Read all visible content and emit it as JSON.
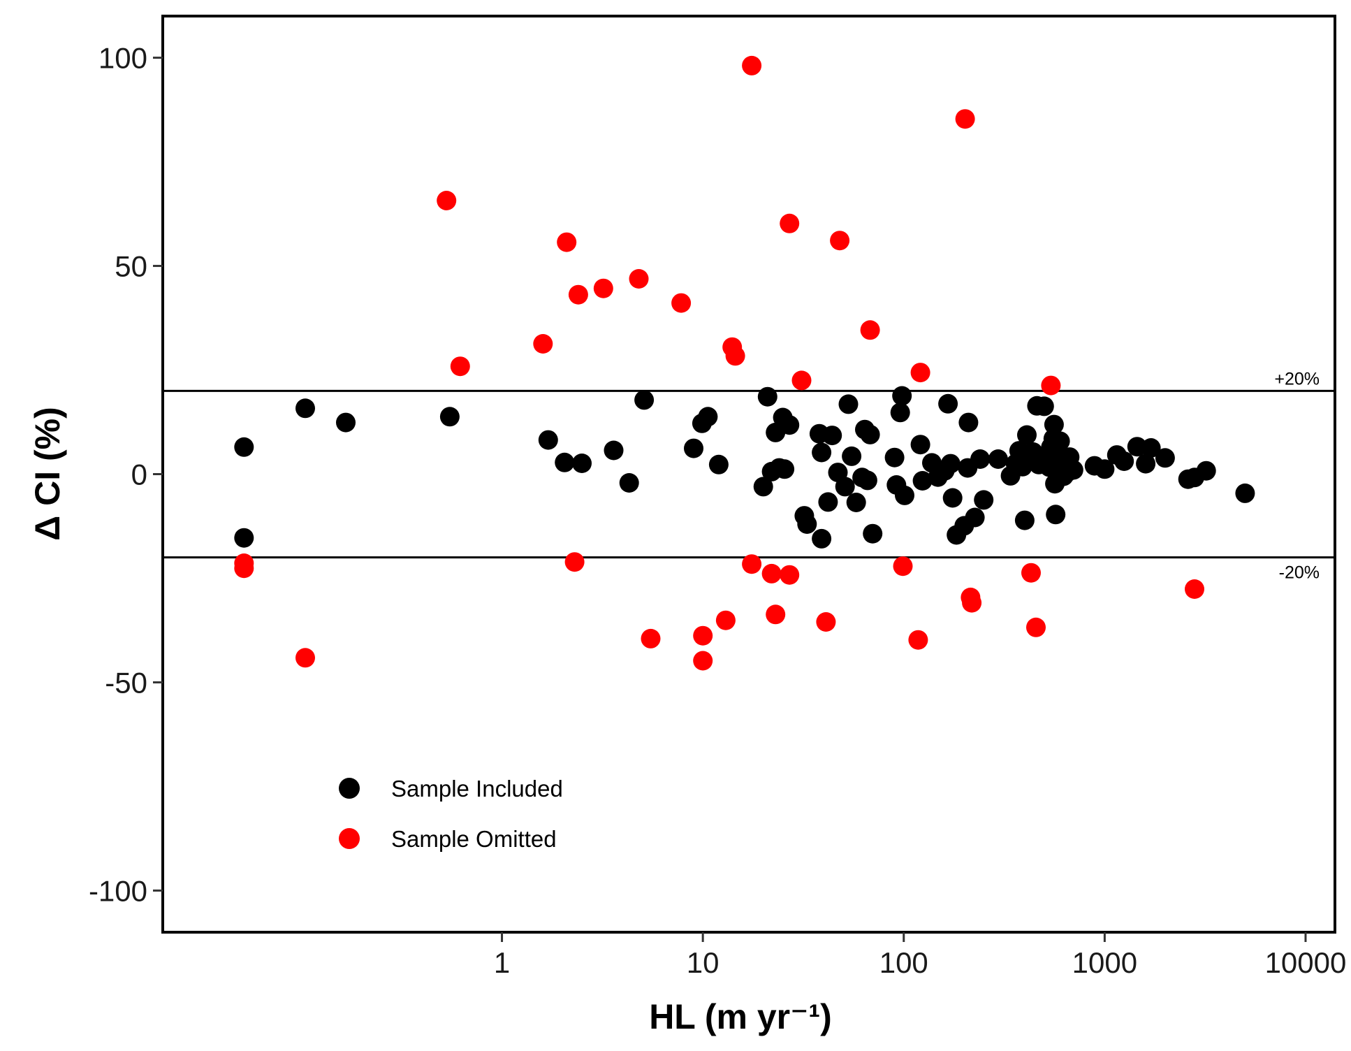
{
  "chart_data": {
    "type": "scatter",
    "x_scale": "log",
    "xlabel": "HL (m yr⁻¹)",
    "ylabel": "Δ CI (%)",
    "xlim": [
      0.0205,
      14000
    ],
    "ylim": [
      -110,
      110
    ],
    "x_ticks": [
      1,
      10,
      100,
      1000,
      10000
    ],
    "x_tick_labels": [
      "1",
      "10",
      "100",
      "1000",
      "10000"
    ],
    "y_ticks": [
      100,
      50,
      0,
      -50,
      -100
    ],
    "y_tick_labels": [
      "100",
      "50",
      "0",
      "-50",
      "-100"
    ],
    "grid": false,
    "legend_position": "bottom-left",
    "reference_lines": [
      {
        "y": 20,
        "label": "+20%"
      },
      {
        "y": -20,
        "label": "-20%"
      }
    ],
    "series": [
      {
        "name": "Sample Included",
        "color": "#000000",
        "points": [
          [
            0.052,
            6.5
          ],
          [
            0.052,
            -15.3
          ],
          [
            0.105,
            15.8
          ],
          [
            0.167,
            12.4
          ],
          [
            0.55,
            13.8
          ],
          [
            1.7,
            8.2
          ],
          [
            2.05,
            2.8
          ],
          [
            2.5,
            2.6
          ],
          [
            3.6,
            5.7
          ],
          [
            4.3,
            -2.1
          ],
          [
            5.1,
            17.8
          ],
          [
            9.0,
            6.2
          ],
          [
            9.9,
            12.2
          ],
          [
            10.6,
            13.8
          ],
          [
            12.0,
            2.3
          ],
          [
            21,
            18.6
          ],
          [
            20,
            -3.0
          ],
          [
            22,
            0.6
          ],
          [
            23,
            10
          ],
          [
            24,
            1.5
          ],
          [
            25,
            13.6
          ],
          [
            25.5,
            1.2
          ],
          [
            27,
            11.8
          ],
          [
            32,
            -10
          ],
          [
            33,
            -12
          ],
          [
            38,
            9.7
          ],
          [
            39,
            -15.5
          ],
          [
            39,
            5.2
          ],
          [
            42,
            -6.7
          ],
          [
            44,
            9.3
          ],
          [
            47,
            0.4
          ],
          [
            51,
            -3.0
          ],
          [
            53,
            16.8
          ],
          [
            55,
            4.3
          ],
          [
            58,
            -6.8
          ],
          [
            62,
            -0.8
          ],
          [
            64,
            10.7
          ],
          [
            66,
            -1.5
          ],
          [
            68,
            9.5
          ],
          [
            70,
            -14.3
          ],
          [
            90,
            4.0
          ],
          [
            92,
            -2.6
          ],
          [
            96,
            14.8
          ],
          [
            98,
            18.8
          ],
          [
            101,
            -5.1
          ],
          [
            121,
            7.1
          ],
          [
            124,
            -1.6
          ],
          [
            138,
            2.7
          ],
          [
            148,
            -0.7
          ],
          [
            160,
            0.8
          ],
          [
            166,
            16.9
          ],
          [
            171,
            2.5
          ],
          [
            175,
            -5.7
          ],
          [
            183,
            -14.6
          ],
          [
            200,
            -12.4
          ],
          [
            208,
            1.5
          ],
          [
            210,
            12.4
          ],
          [
            226,
            -10.4
          ],
          [
            240,
            3.6
          ],
          [
            250,
            -6.2
          ],
          [
            295,
            3.6
          ],
          [
            340,
            -0.4
          ],
          [
            360,
            2.5
          ],
          [
            375,
            5.6
          ],
          [
            390,
            1.8
          ],
          [
            400,
            -11.1
          ],
          [
            410,
            9.4
          ],
          [
            420,
            3.2
          ],
          [
            440,
            5.3
          ],
          [
            460,
            16.4
          ],
          [
            470,
            2.3
          ],
          [
            480,
            3.3
          ],
          [
            500,
            16.3
          ],
          [
            520,
            4.7
          ],
          [
            530,
            1.7
          ],
          [
            540,
            6.5
          ],
          [
            555,
            8.5
          ],
          [
            560,
            11.9
          ],
          [
            565,
            -2.3
          ],
          [
            570,
            -9.7
          ],
          [
            590,
            1.4
          ],
          [
            600,
            7.9
          ],
          [
            610,
            3.4
          ],
          [
            625,
            -0.5
          ],
          [
            650,
            0.4
          ],
          [
            670,
            4.1
          ],
          [
            700,
            1.0
          ],
          [
            890,
            2.0
          ],
          [
            1000,
            1.2
          ],
          [
            1150,
            4.6
          ],
          [
            1250,
            3.1
          ],
          [
            1450,
            6.6
          ],
          [
            1600,
            2.5
          ],
          [
            1700,
            6.3
          ],
          [
            2000,
            3.9
          ],
          [
            2600,
            -1.2
          ],
          [
            2800,
            -0.8
          ],
          [
            3200,
            0.8
          ],
          [
            5000,
            -4.6
          ]
        ]
      },
      {
        "name": "Sample Omitted",
        "color": "#ff0000",
        "points": [
          [
            0.052,
            -21.4
          ],
          [
            0.105,
            -44.1
          ],
          [
            0.052,
            -22.6
          ],
          [
            0.53,
            65.7
          ],
          [
            0.62,
            25.9
          ],
          [
            1.6,
            31.3
          ],
          [
            2.1,
            55.7
          ],
          [
            2.3,
            -21.1
          ],
          [
            2.4,
            43.1
          ],
          [
            3.2,
            44.6
          ],
          [
            4.8,
            46.9
          ],
          [
            5.5,
            -39.5
          ],
          [
            7.8,
            41.1
          ],
          [
            10,
            -38.8
          ],
          [
            10,
            -44.8
          ],
          [
            13,
            -35.1
          ],
          [
            14,
            30.5
          ],
          [
            14.5,
            28.4
          ],
          [
            17.5,
            -21.6
          ],
          [
            17.5,
            98.1
          ],
          [
            22,
            -23.9
          ],
          [
            23,
            -33.7
          ],
          [
            27,
            -24.2
          ],
          [
            27,
            60.2
          ],
          [
            31,
            22.5
          ],
          [
            41,
            -35.5
          ],
          [
            48,
            56.1
          ],
          [
            68,
            34.6
          ],
          [
            99,
            -22.1
          ],
          [
            118,
            -39.8
          ],
          [
            121,
            24.4
          ],
          [
            202,
            85.3
          ],
          [
            215,
            -29.6
          ],
          [
            218,
            -30.9
          ],
          [
            430,
            -23.7
          ],
          [
            455,
            -36.8
          ],
          [
            540,
            21.3
          ],
          [
            2800,
            -27.6
          ]
        ]
      }
    ]
  }
}
